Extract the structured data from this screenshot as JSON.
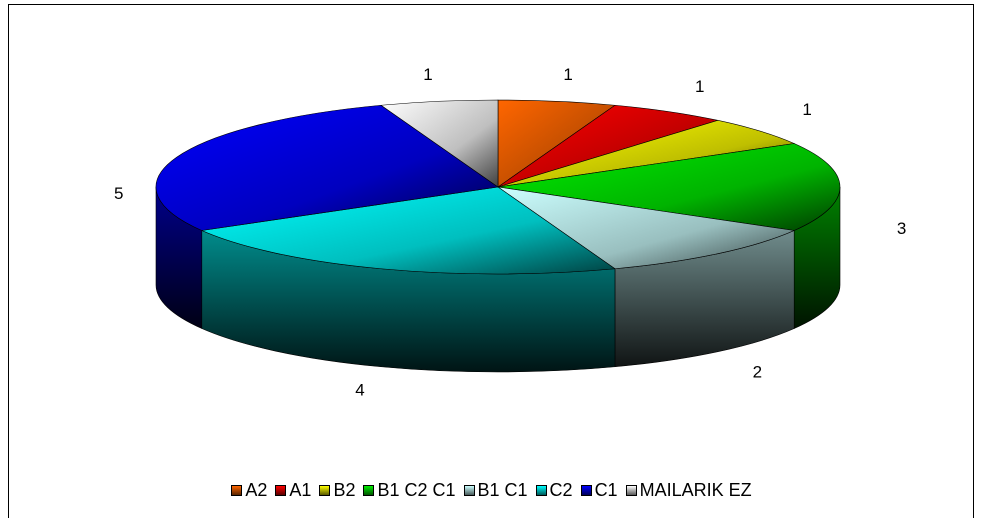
{
  "chart_data": {
    "type": "pie",
    "subtype": "3d-exploded-none",
    "title": "",
    "categories": [
      "A2",
      "A1",
      "B2",
      "B1 C2 C1",
      "B1 C1",
      "C2",
      "C1",
      "MAILARIK EZ"
    ],
    "values": [
      1,
      1,
      1,
      3,
      2,
      4,
      5,
      1
    ],
    "data_labels": [
      "1",
      "1",
      "1",
      "3",
      "2",
      "4",
      "5",
      "1"
    ],
    "colors": [
      "#ff6600",
      "#ff0000",
      "#ffff00",
      "#00ee00",
      "#ccffff",
      "#00ffff",
      "#0000ff",
      "#ffffff"
    ],
    "legend_position": "bottom"
  }
}
